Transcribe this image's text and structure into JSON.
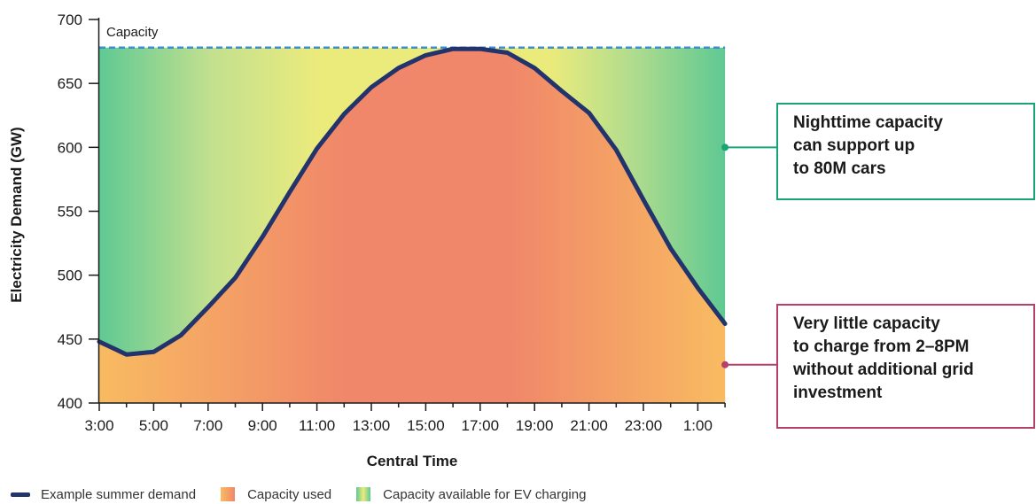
{
  "chart_data": {
    "type": "area",
    "xlabel": "Central Time",
    "ylabel": "Electricity Demand (GW)",
    "ylim": [
      400,
      700
    ],
    "yticks": [
      400,
      450,
      500,
      550,
      600,
      650,
      700
    ],
    "xticks": [
      "3:00",
      "5:00",
      "7:00",
      "9:00",
      "11:00",
      "13:00",
      "15:00",
      "17:00",
      "19:00",
      "21:00",
      "23:00",
      "1:00"
    ],
    "x": [
      "3:00",
      "4:00",
      "5:00",
      "6:00",
      "7:00",
      "8:00",
      "9:00",
      "10:00",
      "11:00",
      "12:00",
      "13:00",
      "14:00",
      "15:00",
      "16:00",
      "17:00",
      "18:00",
      "19:00",
      "20:00",
      "21:00",
      "22:00",
      "23:00",
      "0:00",
      "1:00",
      "2:00"
    ],
    "series": [
      {
        "name": "Example summer demand",
        "values": [
          448,
          438,
          440,
          453,
          475,
          498,
          530,
          565,
          599,
          626,
          647,
          662,
          672,
          677,
          677,
          674,
          662,
          644,
          627,
          598,
          559,
          521,
          490,
          462
        ]
      }
    ],
    "capacity": {
      "label": "Capacity",
      "value": 678
    },
    "legend": {
      "placement": "bottom",
      "entries": [
        {
          "label": "Example summer demand",
          "kind": "line"
        },
        {
          "label": "Capacity used",
          "kind": "swatch"
        },
        {
          "label": "Capacity available for EV charging",
          "kind": "swatch"
        }
      ]
    },
    "annotations": [
      {
        "text": "Nighttime capacity\ncan support up\nto 80M cars",
        "color": "#17a673",
        "x": "1:00",
        "y": 600
      },
      {
        "text": "Very little capacity\nto charge from 2–8PM\nwithout additional grid\ninvestment",
        "color": "#b5406b",
        "x": "1:00",
        "y": 430
      }
    ],
    "colors": {
      "demand_line": "#23336b",
      "capacity_line": "#3a8fd0",
      "used_edge": "#f8bb61",
      "used_center": "#f0866a",
      "available_edge": "#5fc993",
      "available_center": "#ebeb7c",
      "callout_green": "#17a673",
      "callout_red": "#b5406b"
    },
    "grid": false
  }
}
